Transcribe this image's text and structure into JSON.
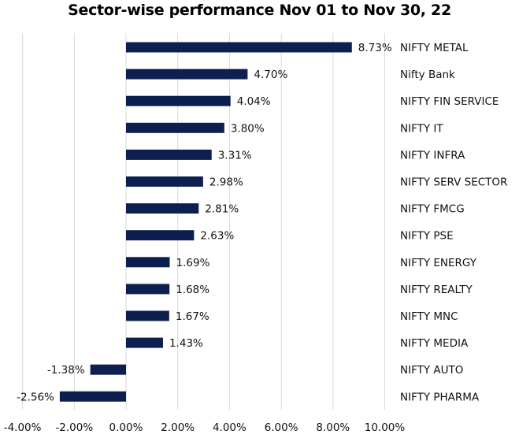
{
  "chart_data": {
    "type": "bar",
    "orientation": "horizontal",
    "title": "Sector-wise performance Nov 01 to Nov 30, 22",
    "categories": [
      "NIFTY METAL",
      "Nifty Bank",
      "NIFTY FIN SERVICE",
      "NIFTY IT",
      "NIFTY INFRA",
      "NIFTY SERV SECTOR",
      "NIFTY FMCG",
      "NIFTY PSE",
      "NIFTY ENERGY",
      "NIFTY REALTY",
      "NIFTY MNC",
      "NIFTY MEDIA",
      "NIFTY AUTO",
      "NIFTY PHARMA"
    ],
    "values": [
      8.73,
      4.7,
      4.04,
      3.8,
      3.31,
      2.98,
      2.81,
      2.63,
      1.69,
      1.68,
      1.67,
      1.43,
      -1.38,
      -2.56
    ],
    "value_labels": [
      "8.73%",
      "4.70%",
      "4.04%",
      "3.80%",
      "3.31%",
      "2.98%",
      "2.81%",
      "2.63%",
      "1.69%",
      "1.68%",
      "1.67%",
      "1.43%",
      "-1.38%",
      "-2.56%"
    ],
    "x_ticks": [
      -4,
      -2,
      0,
      2,
      4,
      6,
      8,
      10
    ],
    "x_tick_labels": [
      "-4.00%",
      "-2.00%",
      "0.00%",
      "2.00%",
      "4.00%",
      "6.00%",
      "8.00%",
      "10.00%"
    ],
    "xlim": [
      -4,
      10
    ],
    "grid": true,
    "bar_color": "#0d1f4e",
    "legend": "none"
  }
}
